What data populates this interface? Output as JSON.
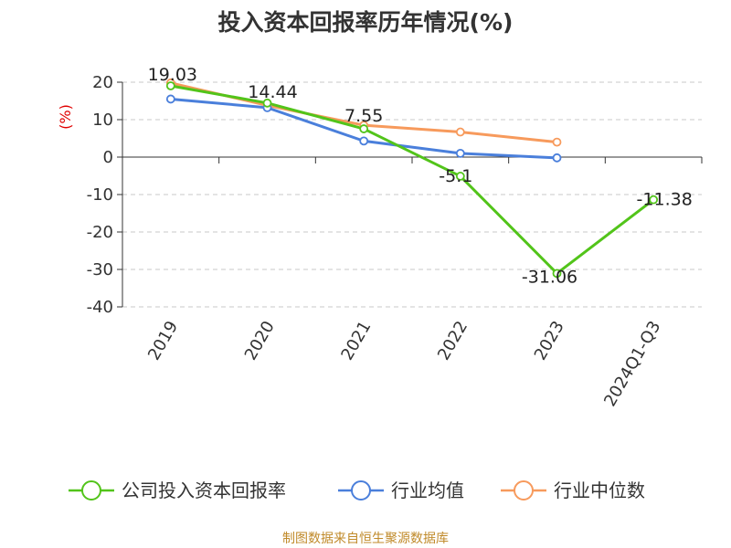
{
  "chart_data": {
    "type": "line",
    "title": "投入资本回报率历年情况(%)",
    "ylabel": "(%)",
    "xlabel": "",
    "categories": [
      "2019",
      "2020",
      "2021",
      "2022",
      "2023",
      "2024Q1-Q3"
    ],
    "ylim": [
      -40,
      20
    ],
    "yticks": [
      20,
      10,
      0,
      -10,
      -20,
      -30,
      -40
    ],
    "grid": true,
    "legend_position": "bottom",
    "series": [
      {
        "name": "公司投入资本回报率",
        "color": "#52c41a",
        "values": [
          19.03,
          14.44,
          7.55,
          -5.1,
          -31.06,
          -11.38
        ],
        "labels": [
          "19.03",
          "14.44",
          "7.55",
          "-5.1",
          "-31.06",
          "-11.38"
        ]
      },
      {
        "name": "行业均值",
        "color": "#4a7fdb",
        "values": [
          15.5,
          13.2,
          4.3,
          1.0,
          -0.2,
          null
        ]
      },
      {
        "name": "行业中位数",
        "color": "#f79a5c",
        "values": [
          19.8,
          13.8,
          8.5,
          6.7,
          4.0,
          null
        ]
      }
    ],
    "source": "制图数据来自恒生聚源数据库"
  }
}
